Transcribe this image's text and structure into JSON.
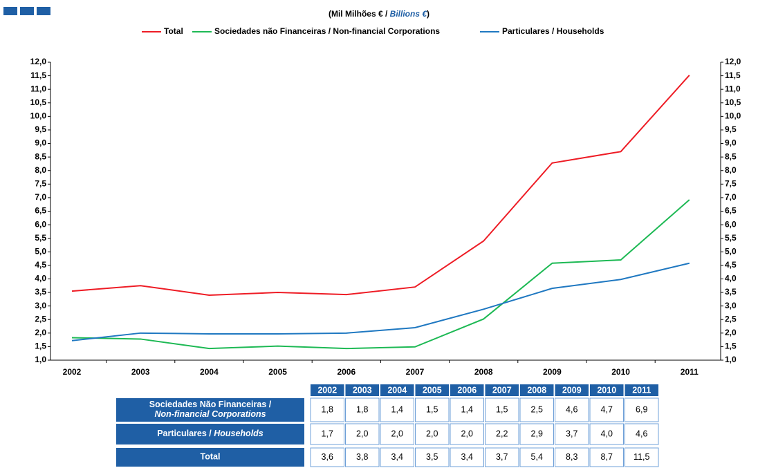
{
  "chart_data": {
    "type": "line",
    "subtitle": [
      "(Mil Milhões € / ",
      "Billions €",
      ")"
    ],
    "categories": [
      "2002",
      "2003",
      "2004",
      "2005",
      "2006",
      "2007",
      "2008",
      "2009",
      "2010",
      "2011"
    ],
    "series": [
      {
        "name": "Total",
        "color": "#ee1c25",
        "values": [
          3.55,
          3.75,
          3.4,
          3.5,
          3.42,
          3.7,
          5.4,
          8.28,
          8.7,
          11.52
        ]
      },
      {
        "name": "Sociedades não Financeiras / Non-financial Corporations",
        "color": "#1db954",
        "values": [
          1.83,
          1.78,
          1.43,
          1.52,
          1.43,
          1.49,
          2.52,
          4.58,
          4.7,
          6.92
        ]
      },
      {
        "name": "Particulares / Households",
        "color": "#1f78c1",
        "values": [
          1.72,
          2.0,
          1.97,
          1.97,
          2.0,
          2.2,
          2.88,
          3.65,
          3.98,
          4.58
        ]
      }
    ],
    "ylim": [
      1.0,
      12.0
    ],
    "yticks": [
      {
        "value": 1.0,
        "label": "1,0"
      },
      {
        "value": 1.5,
        "label": "1,5"
      },
      {
        "value": 2.0,
        "label": "2,0"
      },
      {
        "value": 2.5,
        "label": "2,5"
      },
      {
        "value": 3.0,
        "label": "3,0"
      },
      {
        "value": 3.5,
        "label": "3,5"
      },
      {
        "value": 4.0,
        "label": "4,0"
      },
      {
        "value": 4.5,
        "label": "4,5"
      },
      {
        "value": 5.0,
        "label": "5,0"
      },
      {
        "value": 5.5,
        "label": "5,5"
      },
      {
        "value": 6.0,
        "label": "6,0"
      },
      {
        "value": 6.5,
        "label": "6,5"
      },
      {
        "value": 7.0,
        "label": "7,0"
      },
      {
        "value": 7.5,
        "label": "7,5"
      },
      {
        "value": 8.0,
        "label": "8,0"
      },
      {
        "value": 8.5,
        "label": "8,5"
      },
      {
        "value": 9.0,
        "label": "9,0"
      },
      {
        "value": 9.5,
        "label": "9,5"
      },
      {
        "value": 10.0,
        "label": "10,0"
      },
      {
        "value": 10.5,
        "label": "10,5"
      },
      {
        "value": 11.0,
        "label": "11,0"
      },
      {
        "value": 11.5,
        "label": "11,5"
      },
      {
        "value": 12.0,
        "label": "12,0"
      }
    ],
    "y2lim": [
      1.0,
      12.0
    ],
    "y2ticks": [
      {
        "value": 1.0,
        "label": "1,0"
      },
      {
        "value": 1.5,
        "label": "1,5"
      },
      {
        "value": 2.0,
        "label": "2,0"
      },
      {
        "value": 2.5,
        "label": "2,5"
      },
      {
        "value": 3.0,
        "label": "3,0"
      },
      {
        "value": 3.5,
        "label": "3,5"
      },
      {
        "value": 4.0,
        "label": "4,0"
      },
      {
        "value": 4.5,
        "label": "4,5"
      },
      {
        "value": 5.0,
        "label": "5,0"
      },
      {
        "value": 5.5,
        "label": "5,5"
      },
      {
        "value": 6.0,
        "label": "6,0"
      },
      {
        "value": 6.5,
        "label": "6,5"
      },
      {
        "value": 7.0,
        "label": "7,0"
      },
      {
        "value": 7.5,
        "label": "7,5"
      },
      {
        "value": 8.0,
        "label": "8,0"
      },
      {
        "value": 8.5,
        "label": "8,5"
      },
      {
        "value": 9.0,
        "label": "9,0"
      },
      {
        "value": 9.5,
        "label": "9,5"
      },
      {
        "value": 10.0,
        "label": "10,0"
      },
      {
        "value": 10.5,
        "label": "10,5"
      },
      {
        "value": 11.0,
        "label": "11,0"
      },
      {
        "value": 11.5,
        "label": "11,5"
      },
      {
        "value": 12.0,
        "label": "12,0"
      }
    ],
    "grid": false,
    "legend": "top"
  },
  "table": {
    "columns": [
      "2002",
      "2003",
      "2004",
      "2005",
      "2006",
      "2007",
      "2008",
      "2009",
      "2010",
      "2011"
    ],
    "rows": [
      {
        "label": [
          "Sociedades Não Financeiras /",
          "Non-financial Corporations"
        ],
        "cells": [
          "1,8",
          "1,8",
          "1,4",
          "1,5",
          "1,4",
          "1,5",
          "2,5",
          "4,6",
          "4,7",
          "6,9"
        ]
      },
      {
        "label": [
          "Particulares / ",
          "Households"
        ],
        "cells": [
          "1,7",
          "2,0",
          "2,0",
          "2,0",
          "2,0",
          "2,2",
          "2,9",
          "3,7",
          "4,0",
          "4,6"
        ]
      },
      {
        "label": [
          "Total"
        ],
        "cells": [
          "3,6",
          "3,8",
          "3,4",
          "3,5",
          "3,4",
          "3,7",
          "5,4",
          "8,3",
          "8,7",
          "11,5"
        ]
      }
    ]
  }
}
